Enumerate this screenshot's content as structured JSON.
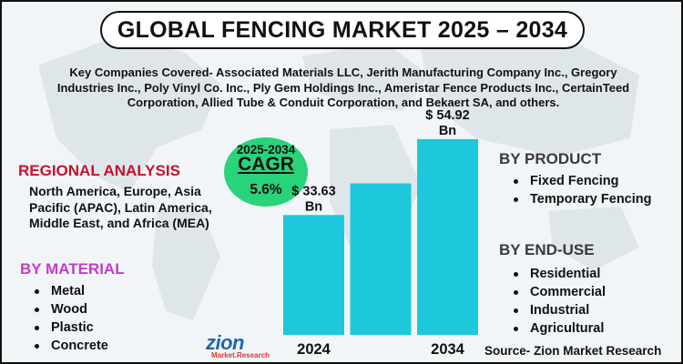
{
  "title": "GLOBAL FENCING MARKET 2025 – 2034",
  "key_companies": "Key Companies Covered- Associated Materials LLC, Jerith Manufacturing Company Inc., Gregory Industries Inc., Poly Vinyl Co. Inc., Ply Gem Holdings Inc., Ameristar Fence Products Inc., CertainTeed Corporation, Allied Tube & Conduit Corporation, and Bekaert SA, and others.",
  "regional": {
    "heading": "REGIONAL ANALYSIS",
    "body": "North America, Europe, Asia Pacific (APAC), Latin America, Middle East, and Africa (MEA)"
  },
  "material": {
    "heading": "BY MATERIAL",
    "items": [
      "Metal",
      "Wood",
      "Plastic",
      "Concrete"
    ]
  },
  "product": {
    "heading": "BY PRODUCT",
    "items": [
      "Fixed Fencing",
      "Temporary Fencing"
    ]
  },
  "end_use": {
    "heading": "BY END-USE",
    "items": [
      "Residential",
      "Commercial",
      "Industrial",
      "Agricultural"
    ]
  },
  "cagr": {
    "period": "2025-2034",
    "label": "CAGR",
    "value": "5.6%"
  },
  "logo": {
    "main": "zion",
    "sub": "Market.Research"
  },
  "source": "Source- Zion Market Research",
  "colors": {
    "bar": "#1ec8dc",
    "cagr_circle": "#29d37a",
    "regional_heading": "#c8102e",
    "material_heading": "#c03ec8",
    "section_heading": "#3a3a3a"
  },
  "chart_data": {
    "type": "bar",
    "categories": [
      "2024",
      "",
      "2034"
    ],
    "values": [
      33.63,
      42.5,
      54.92
    ],
    "data_labels": [
      "$ 33.63 Bn",
      "",
      "$ 54.92 Bn"
    ],
    "ylim": [
      0,
      60
    ]
  }
}
